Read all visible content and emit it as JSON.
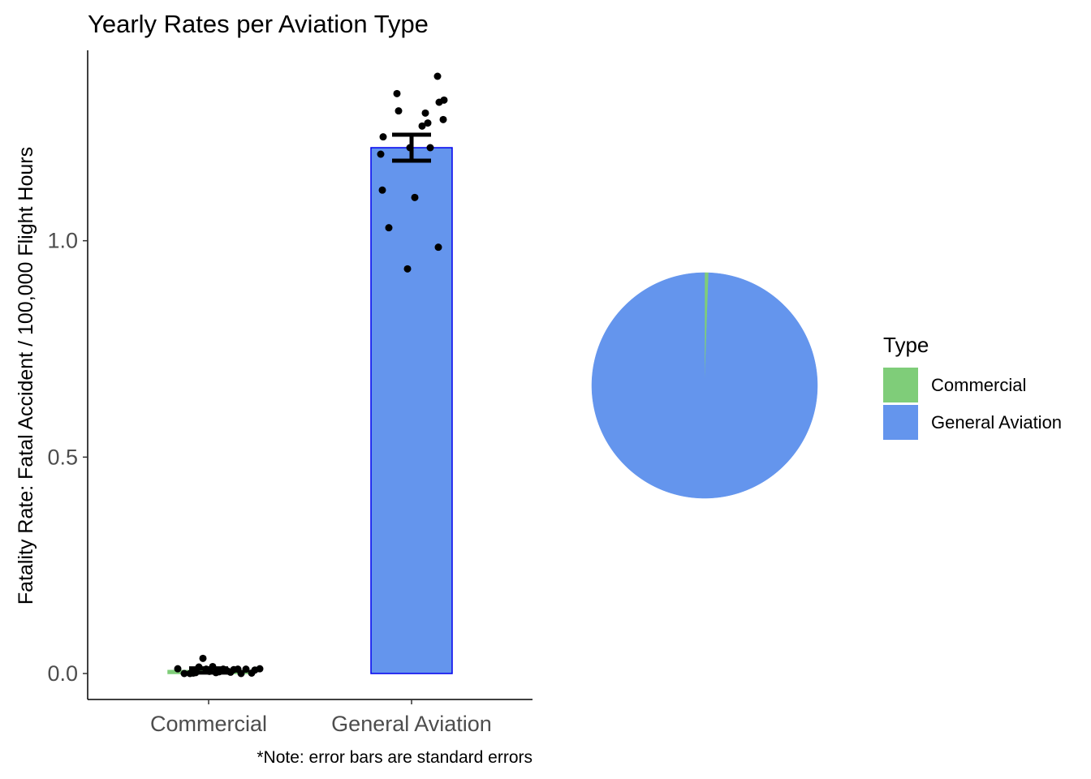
{
  "chart_data": [
    {
      "type": "bar",
      "title": "Yearly Rates per Aviation Type",
      "xlabel": "",
      "ylabel": "Fatality Rate: Fatal Accident / 100,000 Flight Hours",
      "caption": "*Note: error bars are standard errors",
      "categories": [
        "Commercial",
        "General Aviation"
      ],
      "values": [
        0.007,
        1.215
      ],
      "error_bars": [
        {
          "category": "Commercial",
          "lower": 0.002,
          "upper": 0.012
        },
        {
          "category": "General Aviation",
          "lower": 1.185,
          "upper": 1.245
        }
      ],
      "bar_colors": [
        "#7fcd79",
        "#6495ed"
      ],
      "bar_outline": [
        "#7fcd79",
        "#0000ee"
      ],
      "points": {
        "Commercial": [
          {
            "jitter": -0.38,
            "y": 0.011
          },
          {
            "jitter": -0.3,
            "y": 0.0
          },
          {
            "jitter": -0.23,
            "y": 0.0
          },
          {
            "jitter": -0.19,
            "y": 0.001
          },
          {
            "jitter": -0.16,
            "y": 0.002
          },
          {
            "jitter": -0.12,
            "y": 0.015
          },
          {
            "jitter": -0.07,
            "y": 0.035
          },
          {
            "jitter": -0.03,
            "y": 0.01
          },
          {
            "jitter": 0.01,
            "y": 0.005
          },
          {
            "jitter": 0.05,
            "y": 0.016
          },
          {
            "jitter": 0.09,
            "y": 0.002
          },
          {
            "jitter": 0.13,
            "y": 0.004
          },
          {
            "jitter": 0.18,
            "y": 0.01
          },
          {
            "jitter": 0.23,
            "y": 0.006
          },
          {
            "jitter": 0.27,
            "y": 0.003
          },
          {
            "jitter": 0.31,
            "y": 0.009
          },
          {
            "jitter": 0.36,
            "y": 0.01
          },
          {
            "jitter": 0.4,
            "y": 0.0
          },
          {
            "jitter": 0.46,
            "y": 0.01
          },
          {
            "jitter": 0.53,
            "y": 0.001
          },
          {
            "jitter": 0.57,
            "y": 0.008
          },
          {
            "jitter": 0.63,
            "y": 0.011
          }
        ],
        "General Aviation": [
          {
            "jitter": -0.38,
            "y": 1.2
          },
          {
            "jitter": -0.36,
            "y": 1.117
          },
          {
            "jitter": -0.35,
            "y": 1.24
          },
          {
            "jitter": -0.28,
            "y": 1.03
          },
          {
            "jitter": -0.18,
            "y": 1.34
          },
          {
            "jitter": -0.16,
            "y": 1.3
          },
          {
            "jitter": -0.05,
            "y": 0.935
          },
          {
            "jitter": -0.02,
            "y": 1.215
          },
          {
            "jitter": 0.04,
            "y": 1.1
          },
          {
            "jitter": 0.13,
            "y": 1.265
          },
          {
            "jitter": 0.17,
            "y": 1.295
          },
          {
            "jitter": 0.2,
            "y": 1.272
          },
          {
            "jitter": 0.23,
            "y": 1.215
          },
          {
            "jitter": 0.32,
            "y": 1.38
          },
          {
            "jitter": 0.33,
            "y": 0.985
          },
          {
            "jitter": 0.34,
            "y": 1.32
          },
          {
            "jitter": 0.39,
            "y": 1.28
          },
          {
            "jitter": 0.4,
            "y": 1.325
          }
        ]
      },
      "ylim": [
        -0.06,
        1.44
      ],
      "yticks": [
        "0.0",
        "0.5",
        "1.0"
      ],
      "ytick_values": [
        0.0,
        0.5,
        1.0
      ],
      "grid": false,
      "legend": "none"
    },
    {
      "type": "pie",
      "slices": [
        {
          "label": "Commercial",
          "value": 0.007,
          "color": "#7fcd79"
        },
        {
          "label": "General Aviation",
          "value": 1.215,
          "color": "#6495ed"
        }
      ],
      "legend_title": "Type",
      "legend_placement": "right",
      "legend_entries": [
        "Commercial",
        "General Aviation"
      ]
    }
  ]
}
